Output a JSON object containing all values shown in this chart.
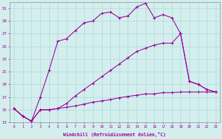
{
  "xlabel": "Windchill (Refroidissement éolien,°C)",
  "bg_color": "#d4eeee",
  "grid_color": "#aad8d8",
  "line_color": "#990099",
  "xlim": [
    -0.5,
    23.5
  ],
  "ylim": [
    13,
    32
  ],
  "xticks": [
    0,
    1,
    2,
    3,
    4,
    5,
    6,
    7,
    8,
    9,
    10,
    11,
    12,
    13,
    14,
    15,
    16,
    17,
    18,
    19,
    20,
    21,
    22,
    23
  ],
  "yticks": [
    13,
    15,
    17,
    19,
    21,
    23,
    25,
    27,
    29,
    31
  ],
  "line1_x": [
    0,
    1,
    2,
    3,
    4,
    5,
    6,
    7,
    8,
    9,
    10,
    11,
    12,
    13,
    14,
    15,
    16,
    17,
    18,
    19,
    20,
    21,
    22,
    23
  ],
  "line1_y": [
    15.2,
    14.0,
    13.2,
    17.0,
    21.2,
    25.8,
    26.2,
    27.5,
    28.7,
    29.0,
    30.2,
    30.4,
    29.5,
    29.8,
    31.2,
    31.8,
    29.5,
    30.0,
    29.5,
    27.0,
    19.5,
    19.0,
    18.2,
    17.8
  ],
  "line2_x": [
    0,
    1,
    2,
    3,
    4,
    5,
    6,
    7,
    8,
    9,
    10,
    11,
    12,
    13,
    14,
    15,
    16,
    17,
    18,
    19,
    20,
    21,
    22,
    23
  ],
  "line2_y": [
    15.2,
    14.0,
    13.2,
    15.0,
    15.0,
    15.2,
    16.0,
    17.2,
    18.2,
    19.2,
    20.2,
    21.2,
    22.2,
    23.2,
    24.2,
    24.7,
    25.2,
    25.5,
    25.5,
    27.0,
    19.5,
    19.0,
    18.2,
    17.8
  ],
  "line3_x": [
    0,
    1,
    2,
    3,
    4,
    5,
    6,
    7,
    8,
    9,
    10,
    11,
    12,
    13,
    14,
    15,
    16,
    17,
    18,
    19,
    20,
    21,
    22,
    23
  ],
  "line3_y": [
    15.2,
    14.0,
    13.2,
    15.0,
    15.0,
    15.2,
    15.4,
    15.6,
    15.9,
    16.2,
    16.4,
    16.6,
    16.9,
    17.1,
    17.3,
    17.5,
    17.5,
    17.7,
    17.7,
    17.8,
    17.8,
    17.8,
    17.8,
    17.8
  ]
}
